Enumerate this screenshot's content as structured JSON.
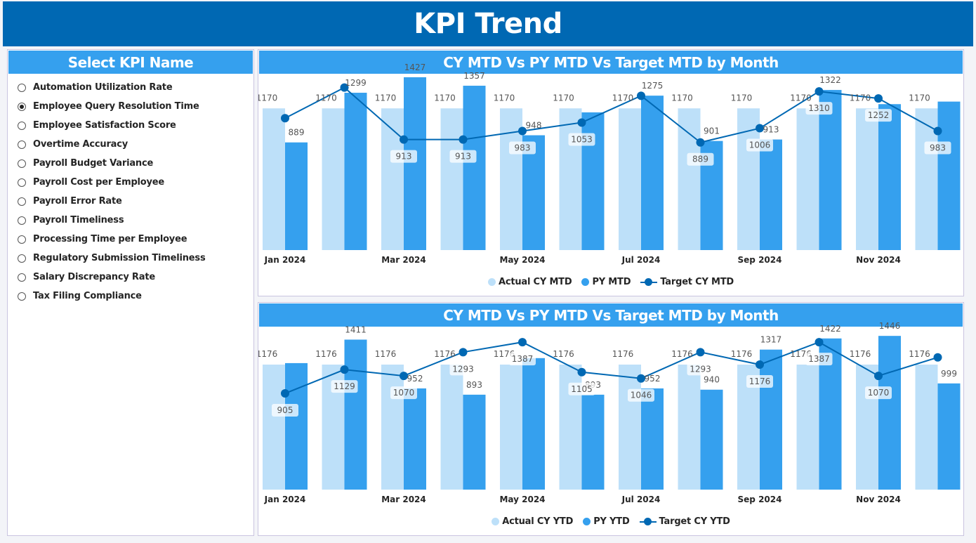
{
  "header": {
    "title": "KPI Trend"
  },
  "slicer": {
    "title": "Select KPI Name",
    "items": [
      {
        "label": "Automation Utilization Rate",
        "selected": false
      },
      {
        "label": "Employee Query Resolution Time",
        "selected": true
      },
      {
        "label": "Employee Satisfaction Score",
        "selected": false
      },
      {
        "label": "Overtime Accuracy",
        "selected": false
      },
      {
        "label": "Payroll Budget Variance",
        "selected": false
      },
      {
        "label": "Payroll Cost per Employee",
        "selected": false
      },
      {
        "label": "Payroll Error Rate",
        "selected": false
      },
      {
        "label": "Payroll Timeliness",
        "selected": false
      },
      {
        "label": "Processing Time per Employee",
        "selected": false
      },
      {
        "label": "Regulatory Submission Timeliness",
        "selected": false
      },
      {
        "label": "Salary Discrepancy Rate",
        "selected": false
      },
      {
        "label": "Tax Filing Compliance",
        "selected": false
      }
    ]
  },
  "colors": {
    "actual": "#bde0f9",
    "py": "#35a0ee",
    "target": "#0068b3",
    "header": "#0068b3",
    "title_bar": "#35a0ee"
  },
  "chart_data": [
    {
      "type": "bar+line",
      "title": "CY MTD Vs PY MTD Vs Target MTD by Month",
      "categories": [
        "Jan 2024",
        "Feb 2024",
        "Mar 2024",
        "Apr 2024",
        "May 2024",
        "Jun 2024",
        "Jul 2024",
        "Aug 2024",
        "Sep 2024",
        "Oct 2024",
        "Nov 2024",
        "Dec 2024"
      ],
      "x_tick_labels": [
        "Jan 2024",
        "",
        "Mar 2024",
        "",
        "May 2024",
        "",
        "Jul 2024",
        "",
        "Sep 2024",
        "",
        "Nov 2024",
        ""
      ],
      "ylim": [
        0,
        1450
      ],
      "legend_position": "bottom",
      "series": [
        {
          "name": "Actual CY MTD",
          "kind": "bar",
          "values": [
            1170,
            1170,
            1170,
            1170,
            1170,
            1170,
            1170,
            1170,
            1170,
            1170,
            1170,
            1170
          ],
          "labels_shown": [
            true,
            true,
            true,
            true,
            true,
            true,
            true,
            true,
            true,
            true,
            true,
            true
          ]
        },
        {
          "name": "PY MTD",
          "kind": "bar",
          "values": [
            889,
            1299,
            1427,
            1357,
            948,
            1137,
            1275,
            901,
            913,
            1322,
            1205,
            1226
          ],
          "labels_shown": [
            true,
            true,
            true,
            true,
            true,
            false,
            true,
            true,
            true,
            true,
            false,
            false
          ]
        },
        {
          "name": "Target CY MTD",
          "kind": "line",
          "values": [
            1089,
            1342,
            913,
            913,
            983,
            1053,
            1274,
            889,
            1006,
            1310,
            1252,
            983
          ],
          "labels_shown": [
            false,
            false,
            true,
            true,
            true,
            true,
            false,
            true,
            true,
            true,
            true,
            true
          ]
        }
      ]
    },
    {
      "type": "bar+line",
      "title": "CY MTD Vs PY MTD Vs Target MTD by Month",
      "categories": [
        "Jan 2024",
        "Feb 2024",
        "Mar 2024",
        "Apr 2024",
        "May 2024",
        "Jun 2024",
        "Jul 2024",
        "Aug 2024",
        "Sep 2024",
        "Oct 2024",
        "Nov 2024",
        "Dec 2024"
      ],
      "x_tick_labels": [
        "Jan 2024",
        "",
        "Mar 2024",
        "",
        "May 2024",
        "",
        "Jul 2024",
        "",
        "Sep 2024",
        "",
        "Nov 2024",
        ""
      ],
      "ylim": [
        0,
        1500
      ],
      "legend_position": "bottom",
      "series": [
        {
          "name": "Actual CY YTD",
          "kind": "bar",
          "values": [
            1176,
            1176,
            1176,
            1176,
            1176,
            1176,
            1176,
            1176,
            1176,
            1176,
            1176,
            1176
          ],
          "labels_shown": [
            true,
            true,
            true,
            true,
            true,
            true,
            true,
            true,
            true,
            true,
            true,
            true
          ]
        },
        {
          "name": "PY YTD",
          "kind": "bar",
          "values": [
            1190,
            1411,
            952,
            893,
            1237,
            893,
            952,
            940,
            1317,
            1422,
            1446,
            999
          ],
          "labels_shown": [
            false,
            true,
            true,
            true,
            false,
            true,
            true,
            true,
            true,
            true,
            true,
            true
          ]
        },
        {
          "name": "Target CY YTD",
          "kind": "line",
          "values": [
            905,
            1129,
            1070,
            1293,
            1387,
            1105,
            1046,
            1293,
            1176,
            1387,
            1070,
            1244
          ],
          "labels_shown": [
            true,
            true,
            true,
            true,
            true,
            true,
            true,
            true,
            true,
            true,
            true,
            false
          ]
        }
      ]
    }
  ]
}
